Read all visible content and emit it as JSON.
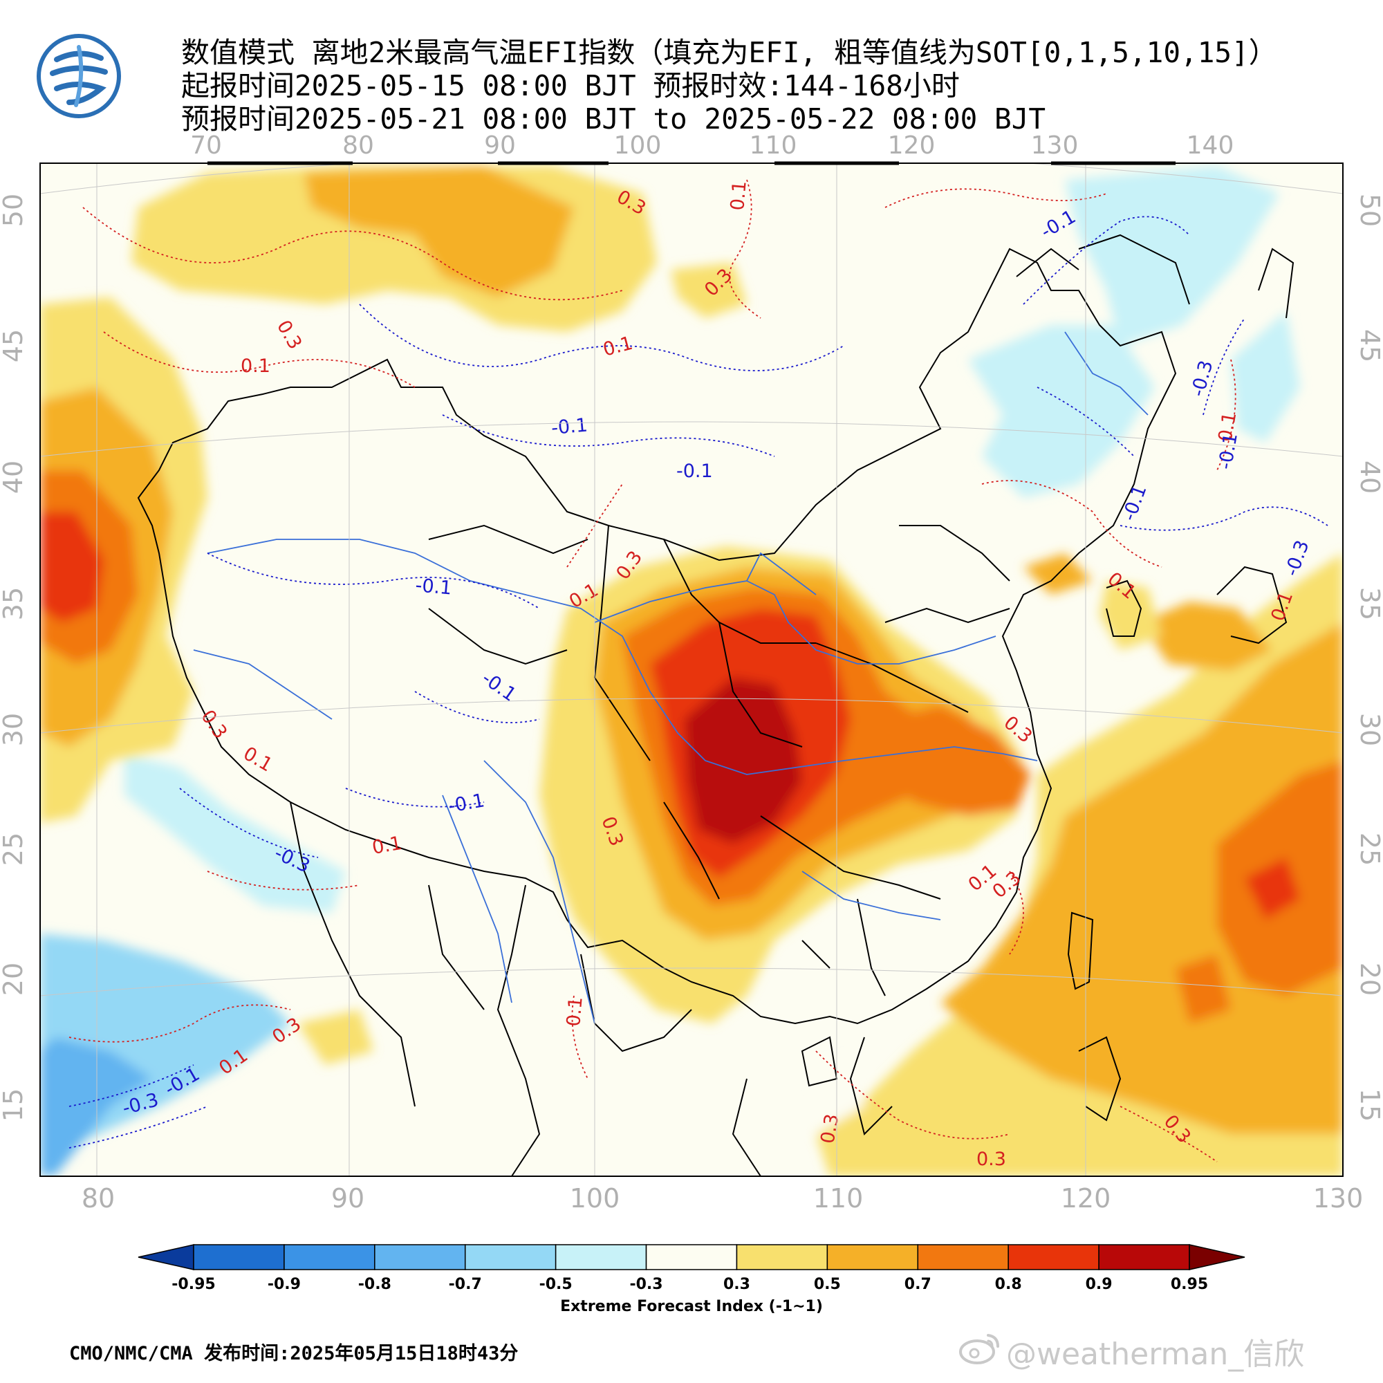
{
  "header": {
    "line1": "数值模式 离地2米最高气温EFI指数（填充为EFI, 粗等值线为SOT[0,1,5,10,15]）",
    "line2": "起报时间2025-05-15 08:00 BJT 预报时效:144-168小时",
    "line3": "预报时间2025-05-21 08:00 BJT to 2025-05-22 08:00 BJT"
  },
  "logo": {
    "icon": "cma-logo-icon",
    "color": "#2a6fb5"
  },
  "map": {
    "top_lon_labels": [
      "70",
      "80",
      "90",
      "100",
      "110",
      "120",
      "130",
      "140"
    ],
    "bottom_lon_labels": [
      "80",
      "90",
      "100",
      "110",
      "120",
      "130"
    ],
    "left_lat_labels": [
      "50",
      "45",
      "40",
      "35",
      "30",
      "25",
      "20",
      "15"
    ],
    "right_lat_labels": [
      "50",
      "45",
      "40",
      "35",
      "30",
      "25",
      "20",
      "15"
    ],
    "contour_labels": [
      {
        "text": "0.3",
        "color": "#d42020"
      },
      {
        "text": "0.1",
        "color": "#d42020"
      },
      {
        "text": "0.3",
        "color": "#d42020"
      },
      {
        "text": "0.1",
        "color": "#d42020"
      },
      {
        "text": "0.3",
        "color": "#d42020"
      },
      {
        "text": "0.1",
        "color": "#d42020"
      },
      {
        "text": "-0.1",
        "color": "#1a1acc"
      },
      {
        "text": "-0.1",
        "color": "#1a1acc"
      },
      {
        "text": "-0.1",
        "color": "#1a1acc"
      },
      {
        "text": "-0.3",
        "color": "#1a1acc"
      },
      {
        "text": "0.1",
        "color": "#d42020"
      },
      {
        "text": "-0.1",
        "color": "#1a1acc"
      },
      {
        "text": "0.3",
        "color": "#d42020"
      },
      {
        "text": "0.1",
        "color": "#d42020"
      },
      {
        "text": "-0.1",
        "color": "#1a1acc"
      },
      {
        "text": "0.3",
        "color": "#d42020"
      },
      {
        "text": "0.1",
        "color": "#d42020"
      },
      {
        "text": "-0.1",
        "color": "#1a1acc"
      },
      {
        "text": "0.1",
        "color": "#d42020"
      },
      {
        "text": "-0.3",
        "color": "#1a1acc"
      },
      {
        "text": "0.3",
        "color": "#d42020"
      },
      {
        "text": "0.1",
        "color": "#d42020"
      },
      {
        "text": "0.3",
        "color": "#d42020"
      },
      {
        "text": "0.1",
        "color": "#d42020"
      },
      {
        "text": "-0.1",
        "color": "#1a1acc"
      },
      {
        "text": "-0.3",
        "color": "#1a1acc"
      },
      {
        "text": "0.1",
        "color": "#d42020"
      },
      {
        "text": "0.3",
        "color": "#d42020"
      },
      {
        "text": "0.3",
        "color": "#d42020"
      },
      {
        "text": "0.3",
        "color": "#d42020"
      },
      {
        "text": "0.3",
        "color": "#d42020"
      },
      {
        "text": "-0.1",
        "color": "#1a1acc"
      },
      {
        "text": "0.1",
        "color": "#d42020"
      },
      {
        "text": "-0.3",
        "color": "#1a1acc"
      },
      {
        "text": "0.1",
        "color": "#d42020"
      },
      {
        "text": "-0.1",
        "color": "#1a1acc"
      },
      {
        "text": "0.3",
        "color": "#d42020"
      }
    ]
  },
  "colorbar": {
    "ticks": [
      "-0.95",
      "-0.9",
      "-0.8",
      "-0.7",
      "-0.5",
      "-0.3",
      "0.3",
      "0.5",
      "0.7",
      "0.8",
      "0.9",
      "0.95"
    ],
    "colors": [
      "#0a3b9c",
      "#1e6fd0",
      "#3b93e6",
      "#62b4f0",
      "#94d8f5",
      "#c8f2f8",
      "#fdfdf2",
      "#f8e06e",
      "#f5b028",
      "#f27810",
      "#e8340a",
      "#b80808",
      "#7a0000"
    ],
    "title": "Extreme Forecast Index (-1~1)"
  },
  "footer": {
    "text": "CMO/NMC/CMA 发布时间:2025年05月15日18时43分"
  },
  "watermark": {
    "text": "@weatherman_信欣",
    "icon": "weibo-icon"
  }
}
